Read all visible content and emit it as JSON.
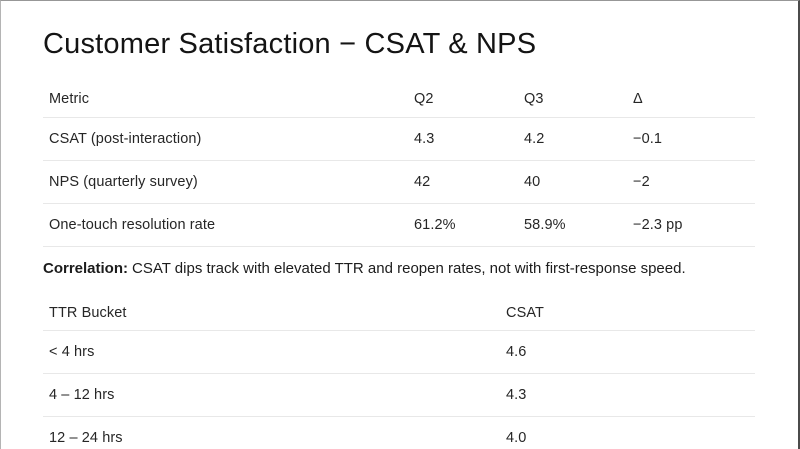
{
  "page": {
    "title": "Customer Satisfaction − CSAT & NPS"
  },
  "metrics_table": {
    "columns": {
      "metric": "Metric",
      "q2": "Q2",
      "q3": "Q3",
      "delta": "Δ"
    },
    "rows": [
      {
        "metric": "CSAT (post-interaction)",
        "q2": "4.3",
        "q3": "4.2",
        "delta": "−0.1"
      },
      {
        "metric": "NPS (quarterly survey)",
        "q2": "42",
        "q3": "40",
        "delta": "−2"
      },
      {
        "metric": "One-touch resolution rate",
        "q2": "61.2%",
        "q3": "58.9%",
        "delta": "−2.3 pp"
      }
    ]
  },
  "correlation_note": {
    "label": "Correlation:",
    "text": "CSAT dips track with elevated TTR and reopen rates, not with first-response speed."
  },
  "ttr_table": {
    "columns": {
      "bucket": "TTR Bucket",
      "csat": "CSAT"
    },
    "rows": [
      {
        "bucket": "< 4 hrs",
        "csat": "4.6"
      },
      {
        "bucket": "4 – 12 hrs",
        "csat": "4.3"
      },
      {
        "bucket": "12 – 24 hrs",
        "csat": "4.0"
      }
    ]
  },
  "colors": {
    "background": "#ffffff",
    "title_text": "#141414",
    "body_text": "#262626",
    "divider": "#e8e8e8",
    "slide_edge_dark": "#4b4b4b",
    "slide_edge_light": "#b4b4b4"
  }
}
